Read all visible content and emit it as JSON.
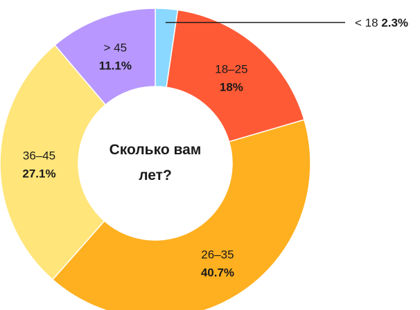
{
  "chart_data": {
    "type": "pie",
    "style": "donut",
    "title": "Сколько вам лет?",
    "title_lines": [
      "Сколько вам",
      "лет?"
    ],
    "categories": [
      "< 18",
      "18–25",
      "26–35",
      "36–45",
      "> 45"
    ],
    "values": [
      2.3,
      18,
      40.7,
      27.1,
      11.1
    ],
    "value_labels": [
      "2.3%",
      "18%",
      "40.7%",
      "27.1%",
      "11.1%"
    ],
    "unit": "%",
    "colors": [
      "#8ad8ff",
      "#ff5a36",
      "#ffb020",
      "#ffe57a",
      "#b898ff"
    ],
    "start_angle_deg": 90,
    "direction": "clockwise",
    "legend": "none"
  }
}
